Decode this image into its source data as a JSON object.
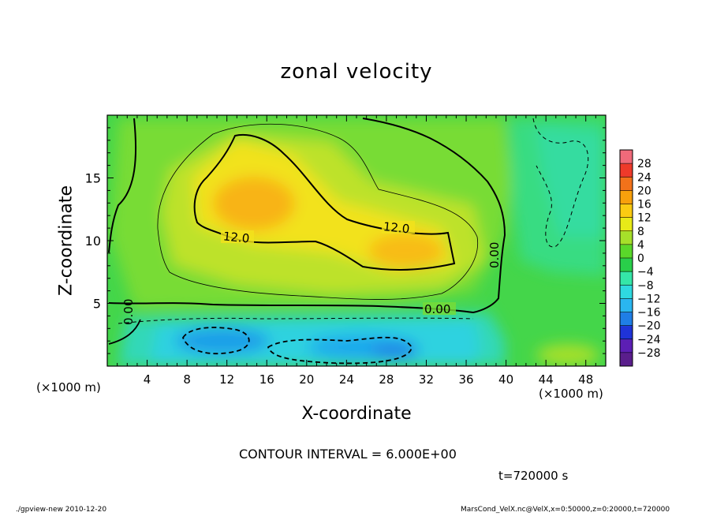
{
  "chart_data": {
    "type": "heatmap",
    "title": "zonal velocity",
    "xlabel": "X-coordinate",
    "ylabel": "Z-coordinate",
    "x_unit_label": "(×1000 m)",
    "xlim": [
      0,
      50
    ],
    "ylim": [
      0,
      20
    ],
    "x_ticks": [
      4,
      8,
      12,
      16,
      20,
      24,
      28,
      32,
      36,
      40,
      44,
      48
    ],
    "y_ticks": [
      5,
      10,
      15
    ],
    "colorbar": {
      "labels": [
        "28",
        "24",
        "20",
        "16",
        "12",
        "8",
        "4",
        "0",
        "−4",
        "−8",
        "−12",
        "−16",
        "−20",
        "−24",
        "−28"
      ],
      "colors": [
        "#5a1e8c",
        "#5c1fb4",
        "#1f33d8",
        "#1f7ee6",
        "#2ab6f0",
        "#2fd9e0",
        "#35e6a8",
        "#29cf4a",
        "#5ad82a",
        "#a6e02a",
        "#e8ea18",
        "#fbcb12",
        "#f8a00c",
        "#f2721a",
        "#ee3a2a",
        "#f06a7a"
      ]
    },
    "contour_labels": [
      "12.0",
      "12.0",
      "0.00",
      "0.00",
      "0.00"
    ],
    "contour_interval_text": "CONTOUR INTERVAL = 6.000E+00",
    "time_text": "t=720000 s",
    "features": [
      {
        "kind": "positive maximum",
        "x": 14,
        "z": 13,
        "value_approx": 16
      },
      {
        "kind": "positive maximum",
        "x": 30,
        "z": 9,
        "value_approx": 14
      },
      {
        "kind": "negative minimum",
        "x": 12,
        "z": 2,
        "value_approx": -14
      },
      {
        "kind": "negative minimum",
        "x": 28,
        "z": 1.5,
        "value_approx": -14
      }
    ]
  },
  "footer": {
    "left": "./gpview-new   2010-12-20",
    "right": "MarsCond_VelX.nc@VelX,x=0:50000,z=0:20000,t=720000"
  }
}
